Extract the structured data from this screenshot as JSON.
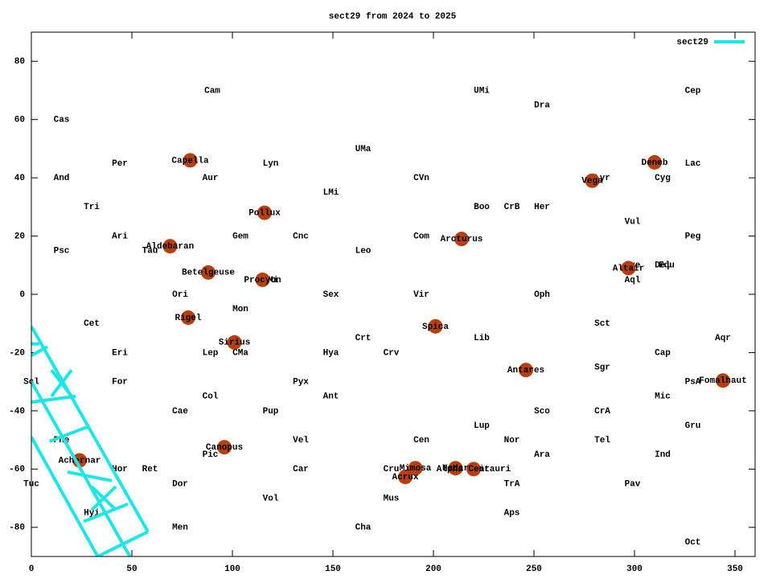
{
  "chart_data": {
    "type": "scatter",
    "title": "sect29 from 2024 to 2025",
    "xlim": [
      0,
      360
    ],
    "ylim": [
      -90,
      90
    ],
    "xticks": [
      0,
      50,
      100,
      150,
      200,
      250,
      300,
      350
    ],
    "yticks": [
      -80,
      -60,
      -40,
      -20,
      0,
      20,
      40,
      60,
      80
    ],
    "legend": "top-right",
    "annotations": [
      {
        "text": "Cam",
        "x": 90,
        "y": 70
      },
      {
        "text": "UMi",
        "x": 224,
        "y": 70
      },
      {
        "text": "Cep",
        "x": 329,
        "y": 70
      },
      {
        "text": "Dra",
        "x": 254,
        "y": 65
      },
      {
        "text": "Cas",
        "x": 15,
        "y": 60
      },
      {
        "text": "UMa",
        "x": 165,
        "y": 50
      },
      {
        "text": "Per",
        "x": 44,
        "y": 45
      },
      {
        "text": "Lyn",
        "x": 119,
        "y": 45
      },
      {
        "text": "Lac",
        "x": 329,
        "y": 45
      },
      {
        "text": "And",
        "x": 15,
        "y": 40
      },
      {
        "text": "Aur",
        "x": 89,
        "y": 40
      },
      {
        "text": "CVn",
        "x": 194,
        "y": 40
      },
      {
        "text": "Lyr",
        "x": 284,
        "y": 40
      },
      {
        "text": "Cyg",
        "x": 314,
        "y": 40
      },
      {
        "text": "LMi",
        "x": 149,
        "y": 35
      },
      {
        "text": "Tri",
        "x": 30,
        "y": 30
      },
      {
        "text": "Boo",
        "x": 224,
        "y": 30
      },
      {
        "text": "CrB",
        "x": 239,
        "y": 30
      },
      {
        "text": "Her",
        "x": 254,
        "y": 30
      },
      {
        "text": "Vul",
        "x": 299,
        "y": 25
      },
      {
        "text": "Ari",
        "x": 44,
        "y": 20
      },
      {
        "text": "Gem",
        "x": 104,
        "y": 20
      },
      {
        "text": "Cnc",
        "x": 134,
        "y": 20
      },
      {
        "text": "Com",
        "x": 194,
        "y": 20
      },
      {
        "text": "Peg",
        "x": 329,
        "y": 20
      },
      {
        "text": "Psc",
        "x": 15,
        "y": 15
      },
      {
        "text": "Tau",
        "x": 59,
        "y": 15
      },
      {
        "text": "Leo",
        "x": 165,
        "y": 15
      },
      {
        "text": "Sge",
        "x": 299,
        "y": 10
      },
      {
        "text": "Equ",
        "x": 316,
        "y": 10
      },
      {
        "text": "Del",
        "x": 314,
        "y": 10
      },
      {
        "text": "CMi",
        "x": 119,
        "y": 5
      },
      {
        "text": "Aql",
        "x": 299,
        "y": 5
      },
      {
        "text": "Ori",
        "x": 74,
        "y": 0
      },
      {
        "text": "Sex",
        "x": 149,
        "y": 0
      },
      {
        "text": "Vir",
        "x": 194,
        "y": 0
      },
      {
        "text": "Oph",
        "x": 254,
        "y": 0
      },
      {
        "text": "Mon",
        "x": 104,
        "y": -5
      },
      {
        "text": "Cet",
        "x": 30,
        "y": -10
      },
      {
        "text": "Sct",
        "x": 284,
        "y": -10
      },
      {
        "text": "Crt",
        "x": 165,
        "y": -15
      },
      {
        "text": "Lib",
        "x": 224,
        "y": -15
      },
      {
        "text": "Aqr",
        "x": 344,
        "y": -15
      },
      {
        "text": "Eri",
        "x": 44,
        "y": -20
      },
      {
        "text": "Lep",
        "x": 89,
        "y": -20
      },
      {
        "text": "CMa",
        "x": 104,
        "y": -20
      },
      {
        "text": "Hya",
        "x": 149,
        "y": -20
      },
      {
        "text": "Crv",
        "x": 179,
        "y": -20
      },
      {
        "text": "Cap",
        "x": 314,
        "y": -20
      },
      {
        "text": "Sgr",
        "x": 284,
        "y": -25
      },
      {
        "text": "Scl",
        "x": 0,
        "y": -30
      },
      {
        "text": "For",
        "x": 44,
        "y": -30
      },
      {
        "text": "Pyx",
        "x": 134,
        "y": -30
      },
      {
        "text": "PsA",
        "x": 329,
        "y": -30
      },
      {
        "text": "Col",
        "x": 89,
        "y": -35
      },
      {
        "text": "Ant",
        "x": 149,
        "y": -35
      },
      {
        "text": "Mic",
        "x": 314,
        "y": -35
      },
      {
        "text": "Cae",
        "x": 74,
        "y": -40
      },
      {
        "text": "Pup",
        "x": 119,
        "y": -40
      },
      {
        "text": "Sco",
        "x": 254,
        "y": -40
      },
      {
        "text": "CrA",
        "x": 284,
        "y": -40
      },
      {
        "text": "Lup",
        "x": 224,
        "y": -45
      },
      {
        "text": "Gru",
        "x": 329,
        "y": -45
      },
      {
        "text": "Phe",
        "x": 15,
        "y": -50
      },
      {
        "text": "Vel",
        "x": 134,
        "y": -50
      },
      {
        "text": "Cen",
        "x": 194,
        "y": -50
      },
      {
        "text": "Nor",
        "x": 239,
        "y": -50
      },
      {
        "text": "Tel",
        "x": 284,
        "y": -50
      },
      {
        "text": "Pic",
        "x": 89,
        "y": -55
      },
      {
        "text": "Ara",
        "x": 254,
        "y": -55
      },
      {
        "text": "Ind",
        "x": 314,
        "y": -55
      },
      {
        "text": "Hor",
        "x": 44,
        "y": -60
      },
      {
        "text": "Ret",
        "x": 59,
        "y": -60
      },
      {
        "text": "Car",
        "x": 134,
        "y": -60
      },
      {
        "text": "Cru",
        "x": 179,
        "y": -60
      },
      {
        "text": "Cir",
        "x": 224,
        "y": -60
      },
      {
        "text": "Tuc",
        "x": 0,
        "y": -65
      },
      {
        "text": "Dor",
        "x": 74,
        "y": -65
      },
      {
        "text": "TrA",
        "x": 239,
        "y": -65
      },
      {
        "text": "Pav",
        "x": 299,
        "y": -65
      },
      {
        "text": "Vol",
        "x": 119,
        "y": -70
      },
      {
        "text": "Mus",
        "x": 179,
        "y": -70
      },
      {
        "text": "Hyi",
        "x": 30,
        "y": -75
      },
      {
        "text": "Aps",
        "x": 239,
        "y": -75
      },
      {
        "text": "Men",
        "x": 74,
        "y": -80
      },
      {
        "text": "Cha",
        "x": 165,
        "y": -80
      },
      {
        "text": "Oct",
        "x": 329,
        "y": -85
      }
    ],
    "points": {
      "color": "#b5400c",
      "labels": [
        "Capella",
        "Deneb",
        "Vega",
        "Pollux",
        "Arcturus",
        "Aldebaran",
        "Altair",
        "Betelgeuse",
        "Procyon",
        "Rigel",
        "Spica",
        "Sirius",
        "Antares",
        "Fomalhaut",
        "Canopus",
        "Achernar",
        "Mimosa",
        "Hadar",
        "Alpha Centauri",
        "Acrux"
      ],
      "x": [
        79,
        310,
        279,
        116,
        214,
        69,
        297,
        88,
        115,
        78,
        201,
        101,
        246,
        344,
        96,
        24,
        191,
        211,
        220,
        186
      ],
      "y": [
        46,
        45.3,
        39,
        28,
        19,
        16.5,
        9,
        7.5,
        5,
        -8,
        -11,
        -16.5,
        -26,
        -29.6,
        -52.5,
        -57,
        -59.7,
        -59.7,
        -60,
        -62.7
      ]
    },
    "series": [
      {
        "name": "sect29",
        "color": "#1ee6e6",
        "x": [
          0,
          58,
          null,
          0,
          33,
          null,
          0,
          49,
          null,
          0,
          4,
          null,
          0,
          22,
          null,
          9,
          28,
          null,
          18,
          40,
          null,
          26,
          48,
          null,
          33,
          58,
          null,
          0,
          8,
          null,
          10,
          20,
          null,
          10,
          20,
          null,
          30,
          42,
          null,
          30,
          42
        ],
        "y": [
          -11,
          -81.5,
          null,
          -49,
          -90,
          null,
          -30,
          -90,
          null,
          -17,
          -17,
          null,
          -37,
          -35,
          null,
          -50.5,
          -45.5,
          null,
          -61,
          -64,
          null,
          -78,
          -72,
          null,
          -90,
          -81.5,
          null,
          -21,
          -18,
          null,
          -35,
          -26,
          null,
          -26,
          -35,
          null,
          -66,
          -74,
          null,
          -74,
          -66
        ]
      }
    ]
  }
}
